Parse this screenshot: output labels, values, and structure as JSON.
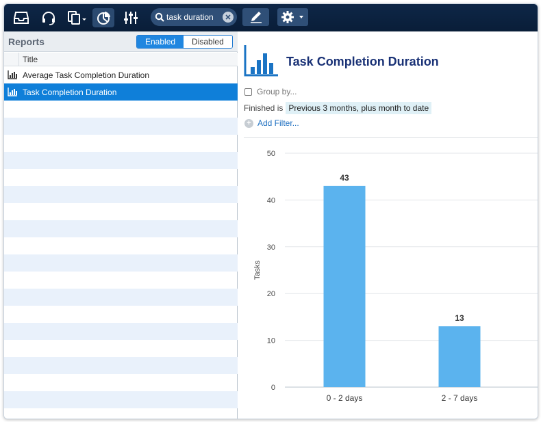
{
  "toolbar": {
    "icons": [
      "inbox-icon",
      "headset-icon",
      "copy-menu-icon",
      "reports-pie-icon",
      "sliders-icon"
    ],
    "search_value": "task duration",
    "edit_icon": "pencil-icon",
    "settings_icon": "gear-icon"
  },
  "reports_panel": {
    "title": "Reports",
    "toggle": {
      "enabled_label": "Enabled",
      "disabled_label": "Disabled",
      "active": "Enabled"
    },
    "column_title": "Title",
    "items": [
      {
        "label": "Average Task Completion Duration",
        "selected": false
      },
      {
        "label": "Task Completion Duration",
        "selected": true
      }
    ]
  },
  "report": {
    "title": "Task Completion Duration",
    "group_by_label": "Group by...",
    "filter_field": "Finished is",
    "filter_value": "Previous 3 months, plus month to date",
    "add_filter_label": "Add Filter..."
  },
  "chart_data": {
    "type": "bar",
    "categories": [
      "0 - 2 days",
      "2 - 7 days"
    ],
    "values": [
      43,
      13
    ],
    "ylabel": "Tasks",
    "ylim": [
      0,
      50
    ],
    "yticks": [
      0,
      10,
      20,
      30,
      40,
      50
    ],
    "bar_color": "#5bb3ee",
    "grid": true,
    "data_labels": true
  },
  "colors": {
    "toolbar_bg": "#0e2747",
    "selected_row": "#0f7fd9",
    "accent": "#1f86e0",
    "title_color": "#1a3276"
  }
}
